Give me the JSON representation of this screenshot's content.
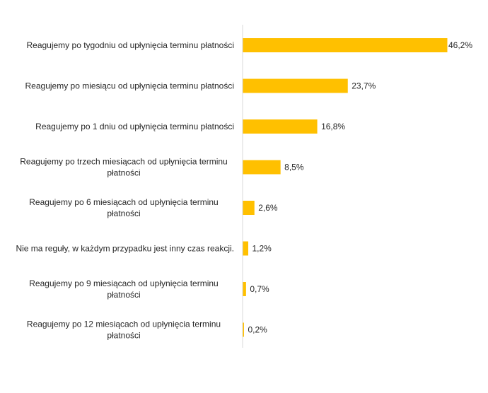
{
  "chart_data": {
    "type": "bar",
    "orientation": "horizontal",
    "categories": [
      "Reagujemy po tygodniu od upłynięcia terminu płatności",
      "Reagujemy po miesiącu od upłynięcia terminu płatności",
      "Reagujemy po 1 dniu od upłynięcia terminu płatności",
      "Reagujemy po trzech miesiącach od upłynięcia terminu płatności",
      "Reagujemy po 6 miesiącach od upłynięcia terminu płatności",
      "Nie ma reguły, w każdym przypadku jest inny czas reakcji.",
      "Reagujemy po 9 miesiącach od upłynięcia terminu płatności",
      "Reagujemy po 12 miesiącach od upłynięcia terminu płatności"
    ],
    "category_lines": [
      [
        "Reagujemy po tygodniu od upłynięcia terminu płatności"
      ],
      [
        "Reagujemy po miesiącu od upłynięcia terminu płatności"
      ],
      [
        "Reagujemy po 1 dniu od upłynięcia terminu płatności"
      ],
      [
        "Reagujemy po trzech miesiącach od upłynięcia terminu",
        "płatności"
      ],
      [
        "Reagujemy po 6 miesiącach od upłynięcia terminu",
        "płatności"
      ],
      [
        "Nie ma reguły, w każdym przypadku jest inny czas reakcji."
      ],
      [
        "Reagujemy po 9 miesiącach od upłynięcia terminu",
        "płatności"
      ],
      [
        "Reagujemy po 12 miesiącach od upłynięcia terminu",
        "płatności"
      ]
    ],
    "values": [
      46.2,
      23.7,
      16.8,
      8.5,
      2.6,
      1.2,
      0.7,
      0.2
    ],
    "value_labels": [
      "46,2%",
      "23,7%",
      "16,8%",
      "8,5%",
      "2,6%",
      "1,2%",
      "0,7%",
      "0,2%"
    ],
    "unit": "%",
    "xlim": [
      0,
      46.2
    ],
    "bar_color": "#FFC000",
    "axis_color": "#D9D9D9",
    "text_color": "#262626",
    "title": "",
    "xlabel": "",
    "ylabel": "",
    "grid": false,
    "legend": "none"
  }
}
